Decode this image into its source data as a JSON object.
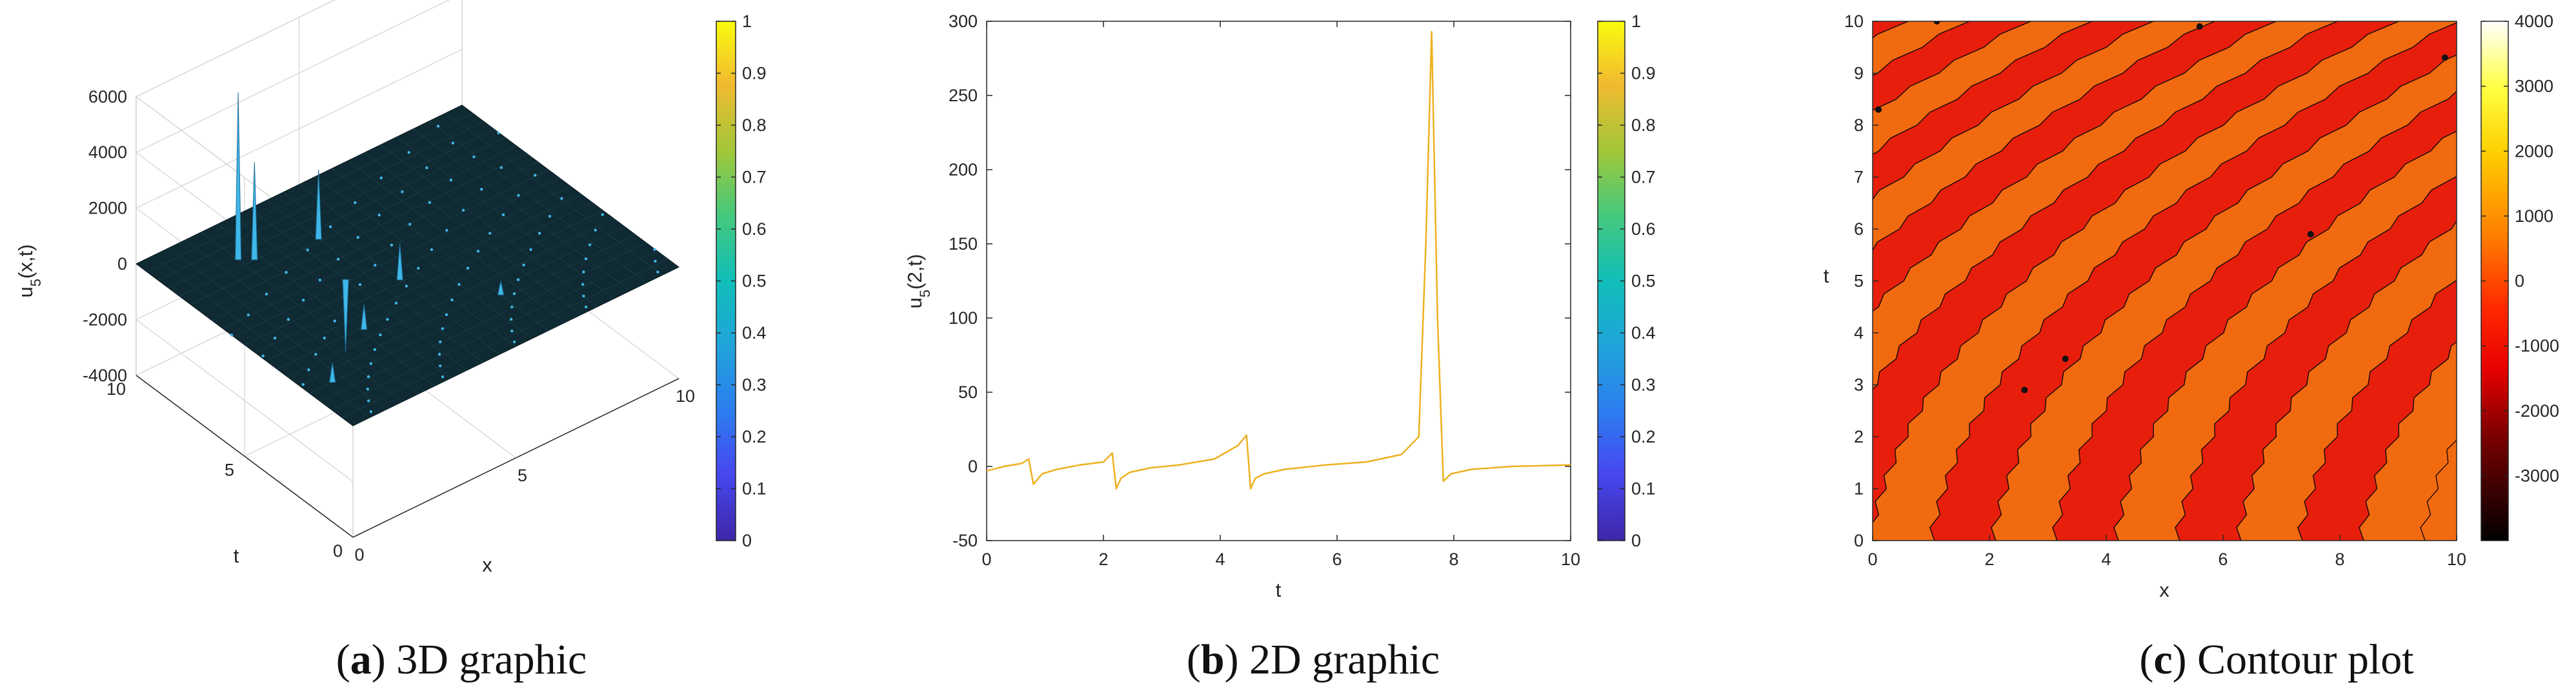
{
  "captions": {
    "a_letter": "a",
    "a_text": "3D graphic",
    "b_letter": "b",
    "b_text": "2D graphic",
    "c_letter": "c",
    "c_text": "Contour plot"
  },
  "colors": {
    "line": "#EDB120",
    "surface": "#0F2A33",
    "spike": "#3FB7E8",
    "contour_dark": "#E81E0C",
    "contour_light": "#F26A10"
  },
  "chart_data": [
    {
      "type": "surface",
      "title": "",
      "xlabel": "x",
      "ylabel": "t",
      "zlabel": "u5(x,t)",
      "zlabel_sub": "5",
      "xlim": [
        0,
        10
      ],
      "ylim": [
        0,
        10
      ],
      "zlim": [
        -4000,
        6000
      ],
      "x_ticks": [
        "0",
        "5",
        "10"
      ],
      "y_ticks": [
        "0",
        "5",
        "10"
      ],
      "z_ticks": [
        "-4000",
        "-2000",
        "0",
        "2000",
        "4000",
        "6000"
      ],
      "grid": true,
      "spikes": [
        {
          "x": 2.0,
          "t": 8.3,
          "u": 6000
        },
        {
          "x": 2.3,
          "t": 8.0,
          "u": 3500
        },
        {
          "x": 4.0,
          "t": 7.6,
          "u": 2500
        },
        {
          "x": 4.5,
          "t": 4.6,
          "u": 1300
        },
        {
          "x": 2.6,
          "t": 3.4,
          "u": 900
        },
        {
          "x": 6.0,
          "t": 2.2,
          "u": 500
        },
        {
          "x": 0.7,
          "t": 2.0,
          "u": 700
        },
        {
          "x": 3.5,
          "t": 5.6,
          "u": -2600
        }
      ],
      "colorbar": {
        "min": 0,
        "max": 1,
        "ticks": [
          "0",
          "0.1",
          "0.2",
          "0.3",
          "0.4",
          "0.5",
          "0.6",
          "0.7",
          "0.8",
          "0.9",
          "1"
        ]
      }
    },
    {
      "type": "line",
      "title": "",
      "xlabel": "t",
      "ylabel": "u5(2,t)",
      "ylabel_sub": "5",
      "xlim": [
        0,
        10
      ],
      "ylim": [
        -50,
        300
      ],
      "x_ticks": [
        "0",
        "2",
        "4",
        "6",
        "8",
        "10"
      ],
      "y_ticks": [
        "-50",
        "0",
        "50",
        "100",
        "150",
        "200",
        "250",
        "300"
      ],
      "grid": false,
      "series": [
        {
          "x": [
            0,
            0.3,
            0.6,
            0.72,
            0.8,
            0.95,
            1.2,
            1.6,
            2.0,
            2.15,
            2.22,
            2.3,
            2.45,
            2.8,
            3.3,
            3.9,
            4.3,
            4.45,
            4.52,
            4.6,
            4.75,
            5.1,
            5.8,
            6.5,
            7.1,
            7.4,
            7.52,
            7.62,
            7.72,
            7.82,
            7.95,
            8.3,
            9.0,
            10.0
          ],
          "y": [
            -3,
            0,
            2,
            5,
            -12,
            -5,
            -2,
            1,
            3,
            9,
            -15,
            -8,
            -4,
            -1,
            1,
            5,
            14,
            21,
            -15,
            -8,
            -5,
            -2,
            1,
            3,
            8,
            20,
            150,
            293,
            100,
            -10,
            -5,
            -2,
            0,
            1
          ]
        }
      ],
      "colorbar": {
        "min": 0,
        "max": 1,
        "ticks": [
          "0",
          "0.1",
          "0.2",
          "0.3",
          "0.4",
          "0.5",
          "0.6",
          "0.7",
          "0.8",
          "0.9",
          "1"
        ]
      }
    },
    {
      "type": "heatmap",
      "title": "",
      "xlabel": "x",
      "ylabel": "t",
      "xlim": [
        0,
        10
      ],
      "ylim": [
        0,
        10
      ],
      "x_ticks": [
        "0",
        "2",
        "4",
        "6",
        "8",
        "10"
      ],
      "y_ticks": [
        "0",
        "1",
        "2",
        "3",
        "4",
        "5",
        "6",
        "7",
        "8",
        "9",
        "10"
      ],
      "grid": false,
      "bands": 18,
      "colorbar": {
        "min": -4000,
        "max": 4000,
        "ticks": [
          "-3000",
          "-2000",
          "-1000",
          "0",
          "1000",
          "2000",
          "3000",
          "4000"
        ]
      }
    }
  ]
}
